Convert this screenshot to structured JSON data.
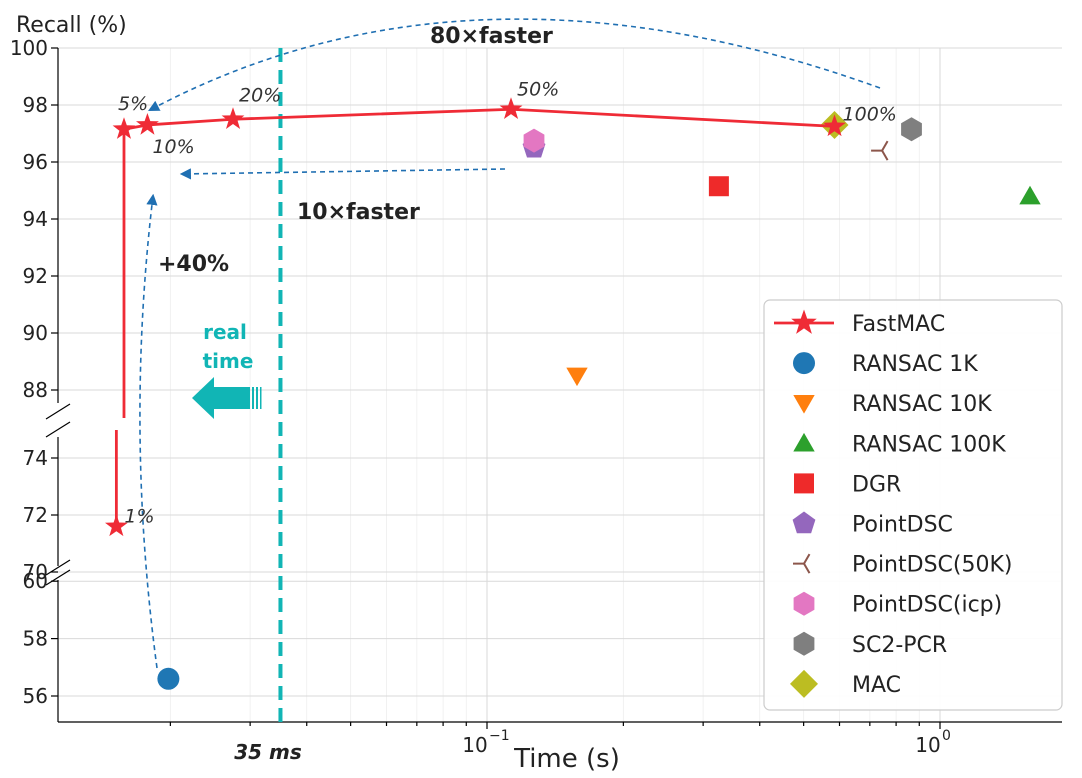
{
  "chart_data": {
    "type": "scatter",
    "xlabel": "Time (s)",
    "ylabel": "Recall (%)",
    "x_scale": "log",
    "x_tick_labels": [
      {
        "value": 0.1,
        "label": "10",
        "exp": "−1"
      },
      {
        "value": 1,
        "label": "10",
        "exp": "0"
      }
    ],
    "y_tick_labels_upper": [
      "88",
      "90",
      "92",
      "94",
      "96",
      "98",
      "100"
    ],
    "y_tick_labels_middle": [
      "70",
      "72",
      "74"
    ],
    "y_tick_labels_lower": [
      "56",
      "58",
      "60"
    ],
    "grid": true,
    "legend_position": "right",
    "fastmac": {
      "name": "FastMAC",
      "color": "#ef2b36",
      "points": [
        {
          "x": 0.0152,
          "y": 71.6,
          "label": "1%"
        },
        {
          "x": 0.0158,
          "y": 97.15,
          "label": "5%"
        },
        {
          "x": 0.0178,
          "y": 97.3,
          "label": "10%"
        },
        {
          "x": 0.0275,
          "y": 97.5,
          "label": "20%"
        },
        {
          "x": 0.113,
          "y": 97.85,
          "label": "50%"
        },
        {
          "x": 0.585,
          "y": 97.25,
          "label": "100%"
        }
      ]
    },
    "series": [
      {
        "name": "RANSAC 1K",
        "marker": "circle",
        "color": "#1f77b4",
        "x": 0.0198,
        "y": 56.6
      },
      {
        "name": "RANSAC 10K",
        "marker": "triangle-down",
        "color": "#ff7f0e",
        "x": 0.158,
        "y": 88.5
      },
      {
        "name": "RANSAC 100K",
        "marker": "triangle-up",
        "color": "#2ca02c",
        "x": 1.58,
        "y": 94.8
      },
      {
        "name": "DGR",
        "marker": "square",
        "color": "#ee2a2a",
        "x": 0.325,
        "y": 95.15
      },
      {
        "name": "PointDSC",
        "marker": "pentagon",
        "color": "#9467bd",
        "x": 0.127,
        "y": 96.5
      },
      {
        "name": "PointDSC(50K)",
        "marker": "tri",
        "color": "#8c564b",
        "x": 0.745,
        "y": 96.4
      },
      {
        "name": "PointDSC(icp)",
        "marker": "hexagon",
        "color": "#e377c2",
        "x": 0.127,
        "y": 96.75
      },
      {
        "name": "SC2-PCR",
        "marker": "hexagon",
        "color": "#7f7f7f",
        "x": 0.865,
        "y": 97.15
      },
      {
        "name": "MAC",
        "marker": "diamond",
        "color": "#bcbd22",
        "x": 0.585,
        "y": 97.3
      }
    ],
    "realtime_line": {
      "x": 0.035,
      "label": "35 ms",
      "color": "#11b5b5"
    },
    "annotations": {
      "speedup_80": "80×faster",
      "speedup_10": "10×faster",
      "recall_gain": "+40%",
      "realtime_line1": "real",
      "realtime_line2": "time"
    }
  }
}
